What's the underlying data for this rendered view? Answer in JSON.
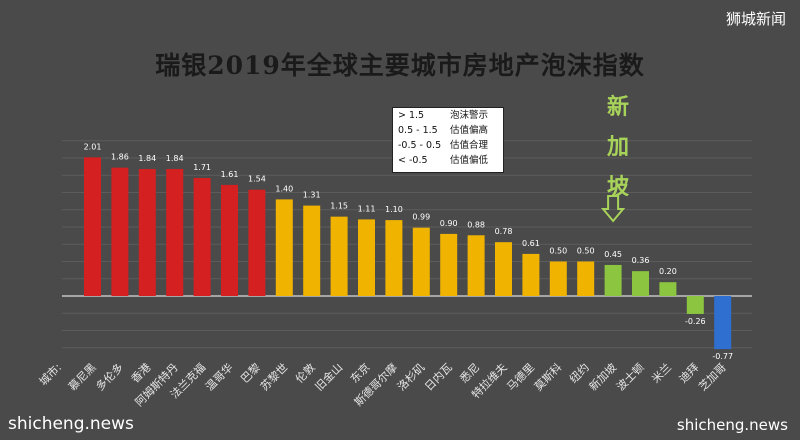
{
  "brand_top": "狮城新闻",
  "brand_bottom_left": "shicheng.news",
  "brand_bottom_right": "shicheng.news",
  "callout": {
    "chars": [
      "新",
      "加",
      "坡"
    ],
    "color": "#a8d35a"
  },
  "legend": [
    {
      "range": "> 1.5",
      "label": "泡沫警示"
    },
    {
      "range": "0.5 - 1.5",
      "label": "估值偏高"
    },
    {
      "range": "-0.5 - 0.5",
      "label": "估值合理"
    },
    {
      "range": "< -0.5",
      "label": "估值偏低"
    }
  ],
  "chart_data": {
    "type": "bar",
    "title": "瑞银2019年全球主要城市房地产泡沫指数",
    "xlabel": "城市:",
    "ylabel": "",
    "ylim": [
      -0.8,
      2.2
    ],
    "grid": true,
    "legend_position": "top-center",
    "categories": [
      "慕尼黑",
      "多伦多",
      "香港",
      "阿姆斯特丹",
      "法兰克福",
      "温哥华",
      "巴黎",
      "苏黎世",
      "伦敦",
      "旧金山",
      "东京",
      "斯德哥尔摩",
      "洛杉矶",
      "日内瓦",
      "悉尼",
      "特拉维夫",
      "马德里",
      "莫斯科",
      "纽约",
      "新加坡",
      "波士顿",
      "米兰",
      "迪拜",
      "芝加哥"
    ],
    "values": [
      2.01,
      1.86,
      1.84,
      1.84,
      1.71,
      1.61,
      1.54,
      1.4,
      1.31,
      1.15,
      1.11,
      1.1,
      0.99,
      0.9,
      0.88,
      0.78,
      0.61,
      0.5,
      0.5,
      0.45,
      0.36,
      0.2,
      -0.26,
      -0.77
    ],
    "value_labels": [
      "2.01",
      "1.86",
      "1.84",
      "1.84",
      "1.71",
      "1.61",
      "1.54",
      "1.40",
      "1.31",
      "1.15",
      "1.11",
      "1.10",
      "0.99",
      "0.90",
      "0.88",
      "0.78",
      "0.61",
      "0.50",
      "0.50",
      "0.45",
      "0.36",
      "0.20",
      "-0.26",
      "-0.77"
    ],
    "colors": {
      "bubble": "#d42020",
      "overvalued": "#f0b400",
      "fair": "#8cc540",
      "undervalued": "#2f6fd0",
      "highlight": "#a8d35a"
    }
  }
}
